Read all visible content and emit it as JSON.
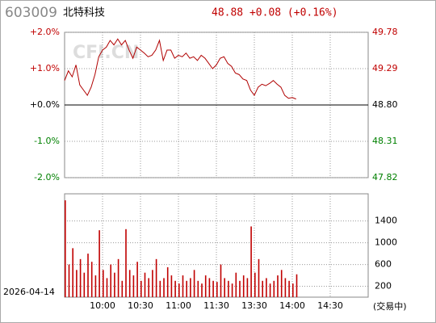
{
  "header": {
    "code": "603009",
    "name": "北特科技",
    "quote": "48.88 +0.08 (+0.16%)",
    "watermark": "CFI.CN",
    "date": "2026-04-14",
    "status": "(交易中)"
  },
  "chart_data": [
    {
      "type": "line",
      "color": "#b00000",
      "x": [
        "09:30",
        "09:33",
        "09:36",
        "09:39",
        "09:42",
        "09:45",
        "09:48",
        "09:51",
        "09:54",
        "09:57",
        "10:00",
        "10:03",
        "10:06",
        "10:09",
        "10:12",
        "10:15",
        "10:18",
        "10:21",
        "10:24",
        "10:27",
        "10:30",
        "10:33",
        "10:36",
        "10:39",
        "10:42",
        "10:45",
        "10:48",
        "10:51",
        "10:54",
        "10:57",
        "11:00",
        "11:03",
        "11:06",
        "11:09",
        "11:12",
        "11:15",
        "11:18",
        "11:21",
        "11:24",
        "11:27",
        "11:30",
        "13:03",
        "13:06",
        "13:09",
        "13:12",
        "13:15",
        "13:18",
        "13:21",
        "13:24",
        "13:27",
        "13:30",
        "13:33",
        "13:36",
        "13:39",
        "13:42",
        "13:45",
        "13:48",
        "13:51",
        "13:54",
        "13:57",
        "14:00",
        "14:03"
      ],
      "values": [
        49.13,
        49.26,
        49.18,
        49.34,
        49.07,
        49.0,
        48.93,
        49.04,
        49.21,
        49.45,
        49.54,
        49.58,
        49.67,
        49.61,
        49.69,
        49.61,
        49.67,
        49.54,
        49.43,
        49.58,
        49.54,
        49.5,
        49.45,
        49.47,
        49.54,
        49.67,
        49.4,
        49.54,
        49.54,
        49.43,
        49.47,
        49.45,
        49.5,
        49.43,
        49.45,
        49.4,
        49.47,
        49.43,
        49.36,
        49.29,
        49.34,
        49.43,
        49.45,
        49.36,
        49.32,
        49.23,
        49.21,
        49.15,
        49.13,
        49.0,
        48.93,
        49.04,
        49.08,
        49.06,
        49.09,
        49.13,
        49.08,
        49.04,
        48.93,
        48.89,
        48.9,
        48.88
      ],
      "ylim": [
        47.82,
        49.78
      ],
      "yticks": [
        47.82,
        48.31,
        {
          "value": 48.8,
          "label": "48.80"
        },
        49.29,
        49.78
      ],
      "y2lim": [
        -2,
        2
      ],
      "y2ticks": [
        {
          "value": -2,
          "label": "-2.0%"
        },
        {
          "value": -1,
          "label": "-1.0%"
        },
        {
          "value": 0,
          "label": "+0.0%"
        },
        {
          "value": 1,
          "label": "+1.0%"
        },
        {
          "value": 2,
          "label": "+2.0%"
        }
      ],
      "grid": true
    },
    {
      "type": "bar",
      "color": "#c00000",
      "x": [
        "09:30",
        "09:33",
        "09:36",
        "09:39",
        "09:42",
        "09:45",
        "09:48",
        "09:51",
        "09:54",
        "09:57",
        "10:00",
        "10:03",
        "10:06",
        "10:09",
        "10:12",
        "10:15",
        "10:18",
        "10:21",
        "10:24",
        "10:27",
        "10:30",
        "10:33",
        "10:36",
        "10:39",
        "10:42",
        "10:45",
        "10:48",
        "10:51",
        "10:54",
        "10:57",
        "11:00",
        "11:03",
        "11:06",
        "11:09",
        "11:12",
        "11:15",
        "11:18",
        "11:21",
        "11:24",
        "11:27",
        "11:30",
        "13:03",
        "13:06",
        "13:09",
        "13:12",
        "13:15",
        "13:18",
        "13:21",
        "13:24",
        "13:27",
        "13:30",
        "13:33",
        "13:36",
        "13:39",
        "13:42",
        "13:45",
        "13:48",
        "13:51",
        "13:54",
        "13:57",
        "14:00",
        "14:03"
      ],
      "values": [
        1780,
        600,
        900,
        500,
        700,
        450,
        800,
        650,
        400,
        1230,
        500,
        350,
        600,
        450,
        700,
        300,
        1250,
        500,
        400,
        650,
        300,
        450,
        350,
        500,
        700,
        300,
        350,
        550,
        400,
        300,
        250,
        400,
        300,
        350,
        500,
        300,
        250,
        400,
        350,
        300,
        280,
        600,
        350,
        300,
        250,
        450,
        300,
        400,
        350,
        1300,
        450,
        700,
        300,
        350,
        250,
        300,
        400,
        500,
        350,
        300,
        250,
        420
      ],
      "ylim": [
        0,
        1900
      ],
      "yticks": [
        200,
        600,
        1000,
        1400
      ],
      "xticks": [
        "10:00",
        "10:30",
        "11:00",
        "11:30",
        "13:30",
        "14:00",
        "14:30"
      ],
      "grid": true
    }
  ]
}
